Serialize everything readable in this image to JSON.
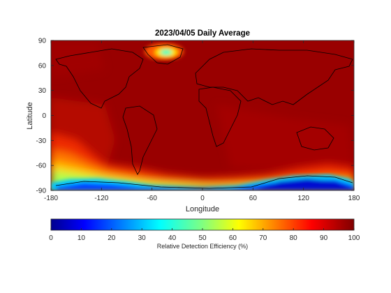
{
  "chart_data": {
    "type": "heatmap",
    "title": "2023/04/05 Daily Average",
    "xlabel": "Longitude",
    "ylabel": "Latitude",
    "xlim": [
      -180,
      180
    ],
    "ylim": [
      -90,
      90
    ],
    "xticks": [
      -180,
      -120,
      -60,
      0,
      60,
      120,
      180
    ],
    "yticks": [
      90,
      60,
      30,
      0,
      -30,
      -60,
      -90
    ],
    "colorbar": {
      "label": "Relative Detection Efficiency (%)",
      "range": [
        0,
        100
      ],
      "ticks": [
        0,
        10,
        20,
        30,
        40,
        50,
        60,
        70,
        80,
        90,
        100
      ],
      "colormap": "jet",
      "orientation": "horizontal",
      "placement": "bottom"
    },
    "background_value": 98,
    "regions": [
      {
        "name": "greenland-low",
        "lon": -45,
        "lat": 72,
        "value": 55
      },
      {
        "name": "south-pacific-ocean",
        "lon": -160,
        "lat": -50,
        "value": 80
      },
      {
        "name": "antarctica-west",
        "lon": -130,
        "lat": -82,
        "value": 15
      },
      {
        "name": "antarctica-east",
        "lon": 120,
        "lat": -78,
        "value": 8
      },
      {
        "name": "southern-ocean-ring",
        "lon": 60,
        "lat": -68,
        "value": 60
      }
    ],
    "grid": false
  }
}
